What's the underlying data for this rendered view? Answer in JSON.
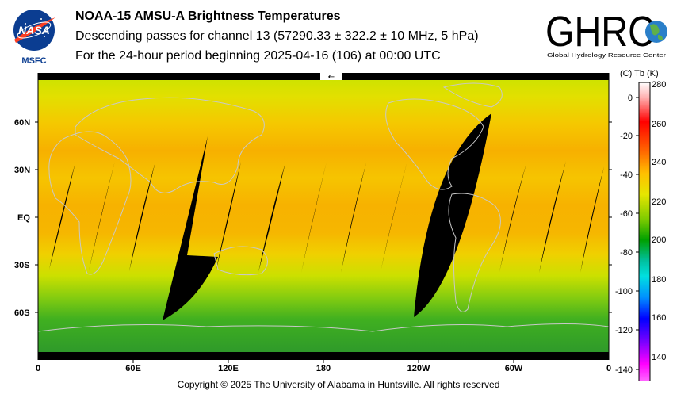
{
  "header": {
    "title": "NOAA-15 AMSU-A Brightness Temperatures",
    "subtitle": "Descending passes for channel 13 (57290.33 ± 322.2 ± 10 MHz, 5 hPa)",
    "period": "For the 24-hour period beginning 2025-04-16 (106) at 00:00 UTC"
  },
  "logos": {
    "nasa": {
      "wordmark": "NASA",
      "center": "MSFC"
    },
    "ghrc": {
      "wordmark": "GHRC",
      "tagline": "Global Hydrology Resource Center"
    }
  },
  "map": {
    "lat_labels": [
      "60N",
      "30N",
      "EQ",
      "30S",
      "60S"
    ],
    "lon_labels": [
      "0",
      "60E",
      "120E",
      "180",
      "120W",
      "60W",
      "0"
    ],
    "direction_arrow": "←"
  },
  "colorbar": {
    "title": "(C)  Tb  (K)",
    "celsius_ticks": [
      "0",
      "-20",
      "-40",
      "-60",
      "-80",
      "-100",
      "-120",
      "-140"
    ],
    "kelvin_ticks": [
      "280",
      "260",
      "240",
      "220",
      "200",
      "180",
      "160",
      "140"
    ],
    "colors": [
      "#ffffff",
      "#ff9999",
      "#ff0000",
      "#ff6600",
      "#ffaa00",
      "#ffd200",
      "#d8e600",
      "#7fcc00",
      "#00aa00",
      "#00b890",
      "#00e0e0",
      "#0080ff",
      "#0000ff",
      "#7700ff",
      "#cc00ff",
      "#ff66ff"
    ]
  },
  "footer": {
    "copyright": "Copyright © 2025 The University of Alabama in Huntsville.  All rights reserved"
  }
}
